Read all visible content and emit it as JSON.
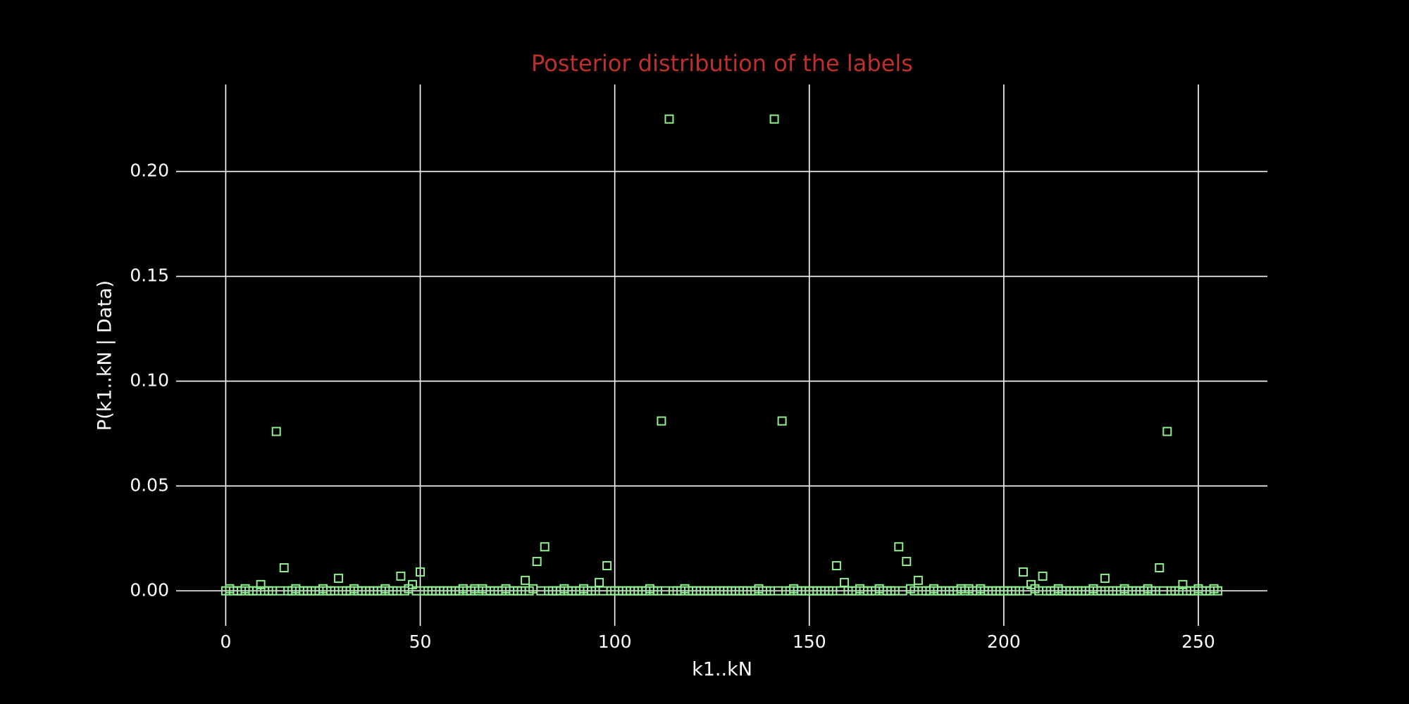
{
  "chart_data": {
    "type": "scatter",
    "title": "Posterior distribution of the labels",
    "xlabel": "k1..kN",
    "ylabel": "P(k1..kN | Data)",
    "color": "#90ee90",
    "grid": true,
    "x": [
      0,
      1,
      2,
      3,
      4,
      5,
      6,
      7,
      8,
      9,
      10,
      11,
      12,
      13,
      14,
      15,
      16,
      17,
      18,
      19,
      20,
      21,
      22,
      23,
      24,
      25,
      26,
      27,
      28,
      29,
      30,
      31,
      32,
      33,
      34,
      35,
      36,
      37,
      38,
      39,
      40,
      41,
      42,
      43,
      44,
      45,
      46,
      47,
      48,
      49,
      50,
      51,
      52,
      53,
      54,
      55,
      56,
      57,
      58,
      59,
      60,
      61,
      62,
      63,
      64,
      65,
      66,
      67,
      68,
      69,
      70,
      71,
      72,
      73,
      74,
      75,
      76,
      77,
      78,
      79,
      80,
      81,
      82,
      83,
      84,
      85,
      86,
      87,
      88,
      89,
      90,
      91,
      92,
      93,
      94,
      95,
      96,
      97,
      98,
      99,
      100,
      101,
      102,
      103,
      104,
      105,
      106,
      107,
      108,
      109,
      110,
      111,
      112,
      113,
      114,
      115,
      116,
      117,
      118,
      119,
      120,
      121,
      122,
      123,
      124,
      125,
      126,
      127,
      128,
      129,
      130,
      131,
      132,
      133,
      134,
      135,
      136,
      137,
      138,
      139,
      140,
      141,
      142,
      143,
      144,
      145,
      146,
      147,
      148,
      149,
      150,
      151,
      152,
      153,
      154,
      155,
      156,
      157,
      158,
      159,
      160,
      161,
      162,
      163,
      164,
      165,
      166,
      167,
      168,
      169,
      170,
      171,
      172,
      173,
      174,
      175,
      176,
      177,
      178,
      179,
      180,
      181,
      182,
      183,
      184,
      185,
      186,
      187,
      188,
      189,
      190,
      191,
      192,
      193,
      194,
      195,
      196,
      197,
      198,
      199,
      200,
      201,
      202,
      203,
      204,
      205,
      206,
      207,
      208,
      209,
      210,
      211,
      212,
      213,
      214,
      215,
      216,
      217,
      218,
      219,
      220,
      221,
      222,
      223,
      224,
      225,
      226,
      227,
      228,
      229,
      230,
      231,
      232,
      233,
      234,
      235,
      236,
      237,
      238,
      239,
      240,
      241,
      242,
      243,
      244,
      245,
      246,
      247,
      248,
      249,
      250,
      251,
      252,
      253,
      254,
      255
    ],
    "values": [
      0,
      0.001,
      0,
      0,
      0,
      0.001,
      0,
      0,
      0,
      0.003,
      0,
      0,
      0,
      0.076,
      0,
      0.011,
      0,
      0,
      0.001,
      0,
      0,
      0,
      0,
      0,
      0,
      0.001,
      0,
      0,
      0,
      0.006,
      0,
      0,
      0,
      0.001,
      0,
      0,
      0,
      0,
      0,
      0,
      0,
      0.001,
      0,
      0,
      0,
      0.007,
      0,
      0.001,
      0.003,
      0,
      0.009,
      0,
      0,
      0,
      0,
      0,
      0,
      0,
      0,
      0,
      0,
      0.001,
      0,
      0,
      0.001,
      0,
      0.001,
      0,
      0,
      0,
      0,
      0,
      0.001,
      0,
      0,
      0,
      0,
      0.005,
      0,
      0.001,
      0.014,
      0,
      0.021,
      0,
      0,
      0,
      0,
      0.001,
      0,
      0,
      0,
      0,
      0.001,
      0,
      0,
      0,
      0.004,
      0,
      0.012,
      0,
      0,
      0,
      0,
      0,
      0,
      0,
      0,
      0,
      0,
      0.001,
      0,
      0,
      0.081,
      0,
      0.225,
      0,
      0,
      0,
      0.001,
      0,
      0,
      0,
      0,
      0,
      0,
      0,
      0,
      0,
      0,
      0,
      0,
      0,
      0,
      0,
      0,
      0,
      0,
      0.001,
      0,
      0,
      0,
      0.225,
      0,
      0.081,
      0,
      0,
      0.001,
      0,
      0,
      0,
      0,
      0,
      0,
      0,
      0,
      0,
      0,
      0.012,
      0,
      0.004,
      0,
      0,
      0,
      0.001,
      0,
      0,
      0,
      0,
      0.001,
      0,
      0,
      0,
      0,
      0.021,
      0,
      0.014,
      0.001,
      0,
      0.005,
      0,
      0,
      0,
      0.001,
      0,
      0,
      0,
      0,
      0,
      0,
      0.001,
      0,
      0.001,
      0,
      0,
      0.001,
      0,
      0,
      0,
      0,
      0,
      0,
      0,
      0,
      0,
      0,
      0.009,
      0,
      0.003,
      0.001,
      0,
      0.007,
      0,
      0,
      0,
      0.001,
      0,
      0,
      0,
      0,
      0,
      0,
      0,
      0,
      0.001,
      0,
      0,
      0.006,
      0,
      0,
      0,
      0,
      0.001,
      0,
      0,
      0,
      0,
      0,
      0.001,
      0,
      0,
      0.011,
      0,
      0.076,
      0,
      0,
      0,
      0.003,
      0,
      0,
      0,
      0.001,
      0,
      0,
      0,
      0.001,
      0
    ],
    "xlim": [
      -12.75,
      267.75
    ],
    "xticks": [
      0,
      50,
      100,
      150,
      200,
      250
    ],
    "ylim": [
      -0.0167,
      0.2415
    ],
    "yticks": [
      {
        "value": 0,
        "label": "0.00"
      },
      {
        "value": 0.05,
        "label": "0.05"
      },
      {
        "value": 0.1,
        "label": "0.10"
      },
      {
        "value": 0.15,
        "label": "0.15"
      },
      {
        "value": 0.2,
        "label": "0.20"
      }
    ]
  }
}
